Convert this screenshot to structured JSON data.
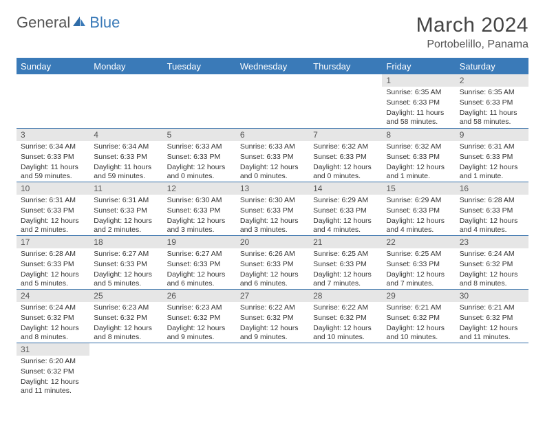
{
  "brand": {
    "part1": "General",
    "part2": "Blue"
  },
  "title": "March 2024",
  "location": "Portobelillo, Panama",
  "colors": {
    "header_bg": "#3a7ab8",
    "header_text": "#ffffff",
    "daynum_bg": "#e6e6e6",
    "row_border": "#2f6ca8",
    "body_text": "#333333",
    "title_text": "#444444"
  },
  "weekdays": [
    "Sunday",
    "Monday",
    "Tuesday",
    "Wednesday",
    "Thursday",
    "Friday",
    "Saturday"
  ],
  "weeks": [
    [
      {
        "blank": true
      },
      {
        "blank": true
      },
      {
        "blank": true
      },
      {
        "blank": true
      },
      {
        "blank": true
      },
      {
        "n": "1",
        "sr": "Sunrise: 6:35 AM",
        "ss": "Sunset: 6:33 PM",
        "dl": "Daylight: 11 hours and 58 minutes."
      },
      {
        "n": "2",
        "sr": "Sunrise: 6:35 AM",
        "ss": "Sunset: 6:33 PM",
        "dl": "Daylight: 11 hours and 58 minutes."
      }
    ],
    [
      {
        "n": "3",
        "sr": "Sunrise: 6:34 AM",
        "ss": "Sunset: 6:33 PM",
        "dl": "Daylight: 11 hours and 59 minutes."
      },
      {
        "n": "4",
        "sr": "Sunrise: 6:34 AM",
        "ss": "Sunset: 6:33 PM",
        "dl": "Daylight: 11 hours and 59 minutes."
      },
      {
        "n": "5",
        "sr": "Sunrise: 6:33 AM",
        "ss": "Sunset: 6:33 PM",
        "dl": "Daylight: 12 hours and 0 minutes."
      },
      {
        "n": "6",
        "sr": "Sunrise: 6:33 AM",
        "ss": "Sunset: 6:33 PM",
        "dl": "Daylight: 12 hours and 0 minutes."
      },
      {
        "n": "7",
        "sr": "Sunrise: 6:32 AM",
        "ss": "Sunset: 6:33 PM",
        "dl": "Daylight: 12 hours and 0 minutes."
      },
      {
        "n": "8",
        "sr": "Sunrise: 6:32 AM",
        "ss": "Sunset: 6:33 PM",
        "dl": "Daylight: 12 hours and 1 minute."
      },
      {
        "n": "9",
        "sr": "Sunrise: 6:31 AM",
        "ss": "Sunset: 6:33 PM",
        "dl": "Daylight: 12 hours and 1 minute."
      }
    ],
    [
      {
        "n": "10",
        "sr": "Sunrise: 6:31 AM",
        "ss": "Sunset: 6:33 PM",
        "dl": "Daylight: 12 hours and 2 minutes."
      },
      {
        "n": "11",
        "sr": "Sunrise: 6:31 AM",
        "ss": "Sunset: 6:33 PM",
        "dl": "Daylight: 12 hours and 2 minutes."
      },
      {
        "n": "12",
        "sr": "Sunrise: 6:30 AM",
        "ss": "Sunset: 6:33 PM",
        "dl": "Daylight: 12 hours and 3 minutes."
      },
      {
        "n": "13",
        "sr": "Sunrise: 6:30 AM",
        "ss": "Sunset: 6:33 PM",
        "dl": "Daylight: 12 hours and 3 minutes."
      },
      {
        "n": "14",
        "sr": "Sunrise: 6:29 AM",
        "ss": "Sunset: 6:33 PM",
        "dl": "Daylight: 12 hours and 4 minutes."
      },
      {
        "n": "15",
        "sr": "Sunrise: 6:29 AM",
        "ss": "Sunset: 6:33 PM",
        "dl": "Daylight: 12 hours and 4 minutes."
      },
      {
        "n": "16",
        "sr": "Sunrise: 6:28 AM",
        "ss": "Sunset: 6:33 PM",
        "dl": "Daylight: 12 hours and 4 minutes."
      }
    ],
    [
      {
        "n": "17",
        "sr": "Sunrise: 6:28 AM",
        "ss": "Sunset: 6:33 PM",
        "dl": "Daylight: 12 hours and 5 minutes."
      },
      {
        "n": "18",
        "sr": "Sunrise: 6:27 AM",
        "ss": "Sunset: 6:33 PM",
        "dl": "Daylight: 12 hours and 5 minutes."
      },
      {
        "n": "19",
        "sr": "Sunrise: 6:27 AM",
        "ss": "Sunset: 6:33 PM",
        "dl": "Daylight: 12 hours and 6 minutes."
      },
      {
        "n": "20",
        "sr": "Sunrise: 6:26 AM",
        "ss": "Sunset: 6:33 PM",
        "dl": "Daylight: 12 hours and 6 minutes."
      },
      {
        "n": "21",
        "sr": "Sunrise: 6:25 AM",
        "ss": "Sunset: 6:33 PM",
        "dl": "Daylight: 12 hours and 7 minutes."
      },
      {
        "n": "22",
        "sr": "Sunrise: 6:25 AM",
        "ss": "Sunset: 6:33 PM",
        "dl": "Daylight: 12 hours and 7 minutes."
      },
      {
        "n": "23",
        "sr": "Sunrise: 6:24 AM",
        "ss": "Sunset: 6:32 PM",
        "dl": "Daylight: 12 hours and 8 minutes."
      }
    ],
    [
      {
        "n": "24",
        "sr": "Sunrise: 6:24 AM",
        "ss": "Sunset: 6:32 PM",
        "dl": "Daylight: 12 hours and 8 minutes."
      },
      {
        "n": "25",
        "sr": "Sunrise: 6:23 AM",
        "ss": "Sunset: 6:32 PM",
        "dl": "Daylight: 12 hours and 8 minutes."
      },
      {
        "n": "26",
        "sr": "Sunrise: 6:23 AM",
        "ss": "Sunset: 6:32 PM",
        "dl": "Daylight: 12 hours and 9 minutes."
      },
      {
        "n": "27",
        "sr": "Sunrise: 6:22 AM",
        "ss": "Sunset: 6:32 PM",
        "dl": "Daylight: 12 hours and 9 minutes."
      },
      {
        "n": "28",
        "sr": "Sunrise: 6:22 AM",
        "ss": "Sunset: 6:32 PM",
        "dl": "Daylight: 12 hours and 10 minutes."
      },
      {
        "n": "29",
        "sr": "Sunrise: 6:21 AM",
        "ss": "Sunset: 6:32 PM",
        "dl": "Daylight: 12 hours and 10 minutes."
      },
      {
        "n": "30",
        "sr": "Sunrise: 6:21 AM",
        "ss": "Sunset: 6:32 PM",
        "dl": "Daylight: 12 hours and 11 minutes."
      }
    ],
    [
      {
        "n": "31",
        "sr": "Sunrise: 6:20 AM",
        "ss": "Sunset: 6:32 PM",
        "dl": "Daylight: 12 hours and 11 minutes."
      },
      {
        "blank": true
      },
      {
        "blank": true
      },
      {
        "blank": true
      },
      {
        "blank": true
      },
      {
        "blank": true
      },
      {
        "blank": true
      }
    ]
  ]
}
